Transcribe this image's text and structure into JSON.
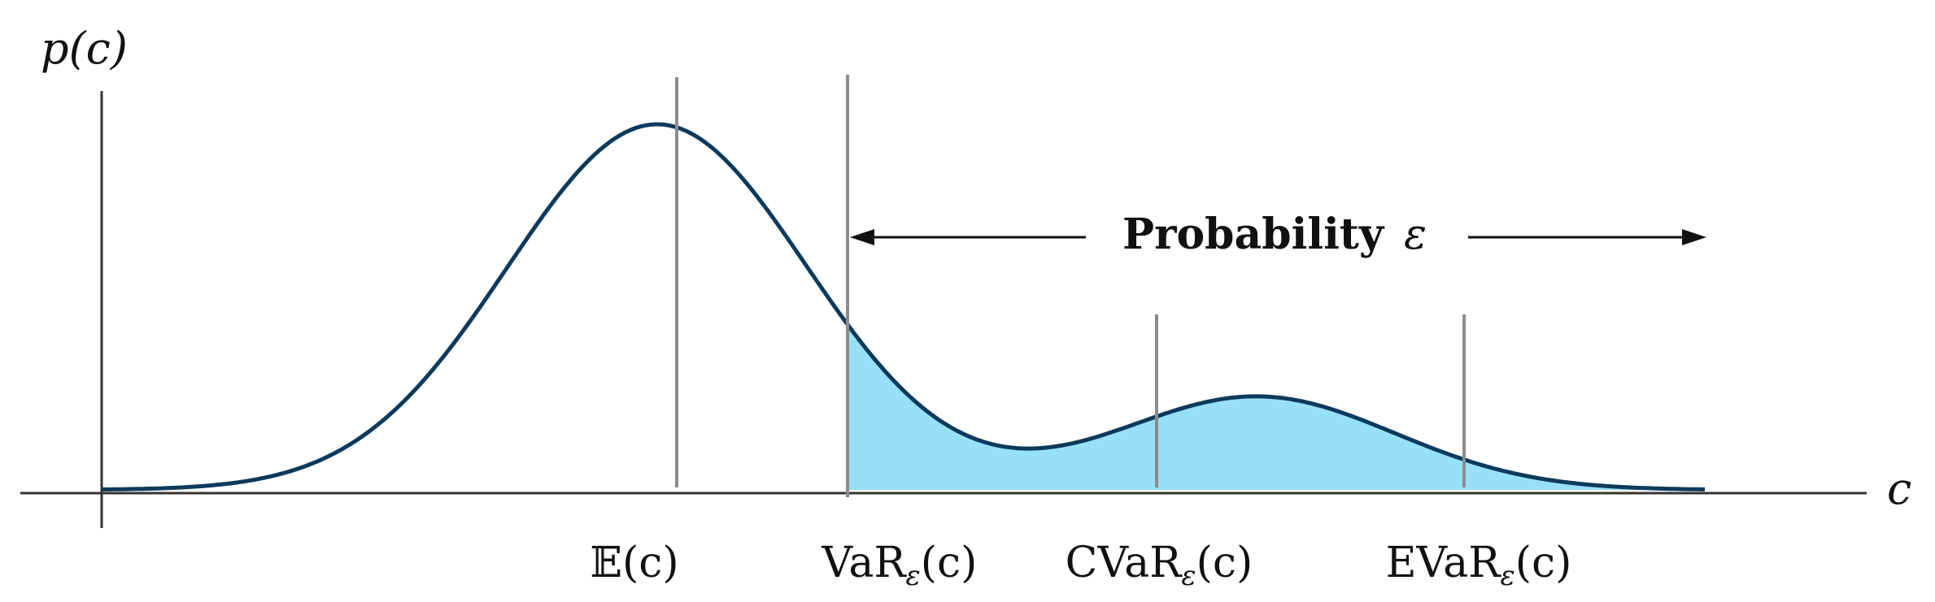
{
  "axes": {
    "y_label": "p(c)",
    "x_label": "c"
  },
  "annotation": {
    "text": "Probability",
    "symbol": "ε"
  },
  "markers": [
    {
      "id": "mean",
      "label_main": "𝔼(c)",
      "label_sub": "",
      "label_tail": ""
    },
    {
      "id": "var",
      "label_main": "VaR",
      "label_sub": "ε",
      "label_tail": "(c)"
    },
    {
      "id": "cvar",
      "label_main": "CVaR",
      "label_sub": "ε",
      "label_tail": "(c)"
    },
    {
      "id": "evar",
      "label_main": "EVaR",
      "label_sub": "ε",
      "label_tail": "(c)"
    }
  ],
  "colors": {
    "curve": "#0d3a5c",
    "tail_fill": "#97e0f7",
    "marker_lines": "#8c8c8c",
    "axes": "#333333",
    "text": "#111111"
  }
}
